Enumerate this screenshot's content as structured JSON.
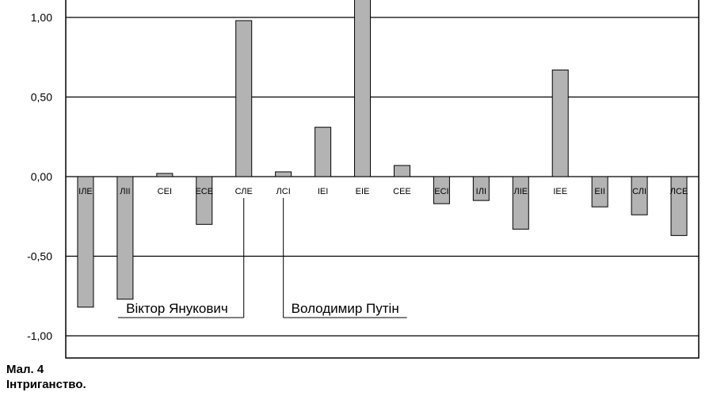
{
  "chart_data": {
    "type": "bar",
    "categories": [
      "ІЛЕ",
      "ЛІІ",
      "СЕІ",
      "ЕСЕ",
      "СЛЕ",
      "ЛСІ",
      "ІЕІ",
      "ЕІЕ",
      "СЕЕ",
      "ЕСІ",
      "ІЛІ",
      "ЛІЕ",
      "ІЕЕ",
      "ЕІІ",
      "СЛІ",
      "ЛСЕ"
    ],
    "values": [
      -0.82,
      -0.77,
      0.02,
      -0.3,
      0.98,
      0.03,
      0.31,
      1.15,
      0.07,
      -0.17,
      -0.15,
      -0.33,
      0.67,
      -0.19,
      -0.24,
      -0.37
    ],
    "yticks": [
      "1,00",
      "0,50",
      "0,00",
      "-0,50",
      "-1,00"
    ],
    "ytick_values": [
      1.0,
      0.5,
      0.0,
      -0.5,
      -1.0
    ],
    "ylim": [
      -1.0,
      1.0
    ],
    "grid": true,
    "bar_color": "#b3b3b3",
    "annotations": [
      {
        "text": "Віктор Янукович",
        "category": "СЛЕ"
      },
      {
        "text": "Володимир Путін",
        "category": "ЛСІ"
      }
    ]
  },
  "caption": {
    "figure": "Мал. 4",
    "title": "Інтриганство."
  }
}
